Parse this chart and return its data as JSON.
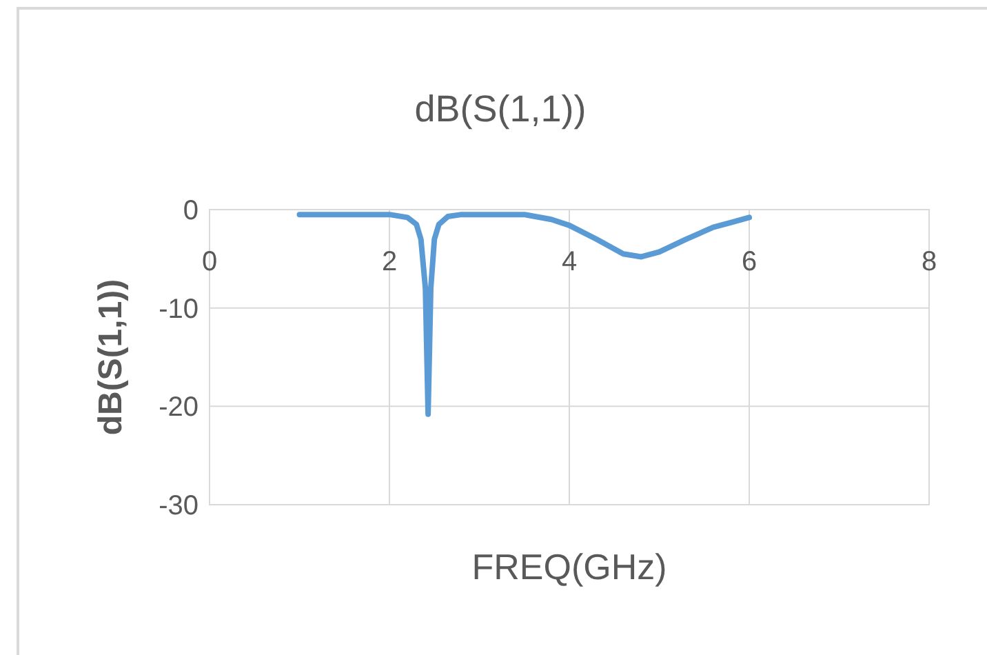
{
  "chart_data": {
    "type": "line",
    "title": "dB(S(1,1))",
    "xlabel": "FREQ(GHz)",
    "ylabel": "dB(S(1,1))",
    "xlim": [
      0,
      8
    ],
    "xticks": [
      0,
      2,
      4,
      6,
      8
    ],
    "ylim": [
      -30,
      0
    ],
    "yticks": [
      -30,
      -20,
      -10,
      0
    ],
    "grid": true,
    "marker": "none",
    "line_style": "solid",
    "series": [
      {
        "color": "#5b9bd5",
        "x": [
          1,
          1.5,
          2,
          2.2,
          2.3,
          2.35,
          2.4,
          2.43,
          2.46,
          2.5,
          2.55,
          2.65,
          2.8,
          3,
          3.5,
          3.8,
          4,
          4.3,
          4.6,
          4.8,
          5,
          5.3,
          5.6,
          5.8,
          6
        ],
        "values": [
          -0.5,
          -0.5,
          -0.5,
          -0.8,
          -1.5,
          -3,
          -8,
          -20.8,
          -8,
          -3,
          -1.5,
          -0.7,
          -0.5,
          -0.5,
          -0.5,
          -1,
          -1.6,
          -3,
          -4.5,
          -4.8,
          -4.3,
          -3,
          -1.8,
          -1.3,
          -0.8
        ]
      }
    ]
  }
}
